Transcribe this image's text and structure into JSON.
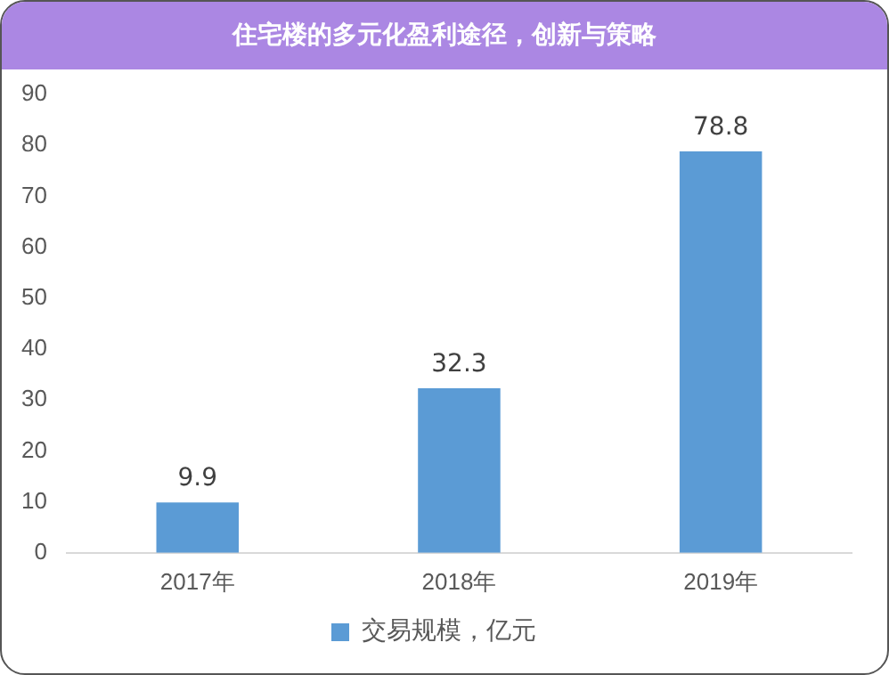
{
  "chart_data": {
    "type": "bar",
    "title": "住宅楼的多元化盈利途径，创新与策略",
    "categories": [
      "2017年",
      "2018年",
      "2019年"
    ],
    "series": [
      {
        "name": "交易规模，亿元",
        "color": "#5b9bd5",
        "values": [
          9.9,
          32.3,
          78.8
        ]
      }
    ],
    "ylim": [
      0,
      90
    ],
    "yticks": [
      0,
      10,
      20,
      30,
      40,
      50,
      60,
      70,
      80,
      90
    ],
    "data_labels": true,
    "legend": "bottom",
    "grid": false
  }
}
